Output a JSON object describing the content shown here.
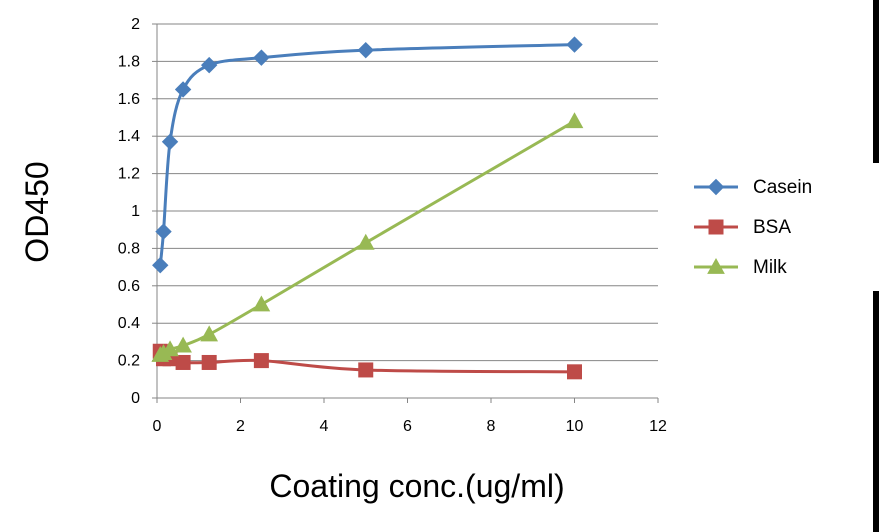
{
  "chart_data": {
    "type": "scatter",
    "ylabel": "OD450",
    "xlabel": "Coating conc.(ug/ml)",
    "xlim": [
      0,
      12
    ],
    "ylim": [
      0,
      2
    ],
    "xticks": [
      "0",
      "2",
      "4",
      "6",
      "8",
      "10",
      "12"
    ],
    "yticks": [
      "0",
      "0.2",
      "0.4",
      "0.6",
      "0.8",
      "1",
      "1.2",
      "1.4",
      "1.6",
      "1.8",
      "2"
    ],
    "grid": "horizontal",
    "legend_position": "right",
    "series": [
      {
        "name": "Casein",
        "color": "#4a7ebb",
        "marker": "diamond",
        "smooth": true,
        "x": [
          0.078,
          0.156,
          0.3125,
          0.625,
          1.25,
          2.5,
          5,
          10
        ],
        "y": [
          0.71,
          0.89,
          1.37,
          1.65,
          1.78,
          1.82,
          1.86,
          1.89
        ]
      },
      {
        "name": "BSA",
        "color": "#be4b48",
        "marker": "square",
        "smooth": true,
        "x": [
          0.078,
          0.156,
          0.3125,
          0.625,
          1.25,
          2.5,
          5,
          10
        ],
        "y": [
          0.25,
          0.21,
          0.21,
          0.19,
          0.19,
          0.2,
          0.15,
          0.14
        ]
      },
      {
        "name": "Milk",
        "color": "#98b954",
        "marker": "triangle",
        "smooth": true,
        "x": [
          0.078,
          0.156,
          0.3125,
          0.625,
          1.25,
          2.5,
          5,
          10
        ],
        "y": [
          0.23,
          0.24,
          0.26,
          0.28,
          0.34,
          0.5,
          0.83,
          1.48
        ]
      }
    ]
  }
}
